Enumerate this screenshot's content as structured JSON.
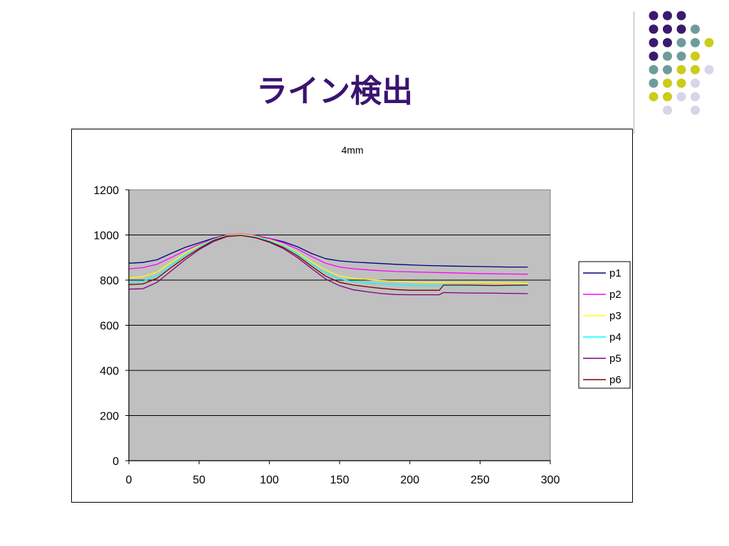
{
  "slide": {
    "title": "ライン検出"
  },
  "decoration": {
    "dot_colors": {
      "purple": "#3b1a6e",
      "teal": "#6f9b9b",
      "yellow": "#cccc1a",
      "lavender": "#d6d6ea"
    }
  },
  "chart_data": {
    "type": "line",
    "title": "4mm",
    "xlabel": "",
    "ylabel": "",
    "xlim": [
      0,
      300
    ],
    "ylim": [
      0,
      1200
    ],
    "xticks": [
      "0",
      "50",
      "100",
      "150",
      "200",
      "250",
      "300"
    ],
    "yticks": [
      "0",
      "200",
      "400",
      "600",
      "800",
      "1000",
      "1200"
    ],
    "grid": "horizontal",
    "plot_background": "#c0c0c0",
    "legend": {
      "placement": "right"
    },
    "series": [
      {
        "name": "p1",
        "color": "#000080",
        "points": [
          [
            0,
            875
          ],
          [
            10,
            878
          ],
          [
            20,
            890
          ],
          [
            30,
            918
          ],
          [
            40,
            945
          ],
          [
            50,
            965
          ],
          [
            60,
            985
          ],
          [
            70,
            1000
          ],
          [
            80,
            1003
          ],
          [
            90,
            995
          ],
          [
            100,
            985
          ],
          [
            110,
            970
          ],
          [
            120,
            948
          ],
          [
            130,
            918
          ],
          [
            140,
            895
          ],
          [
            150,
            885
          ],
          [
            160,
            880
          ],
          [
            175,
            875
          ],
          [
            190,
            870
          ],
          [
            210,
            865
          ],
          [
            230,
            862
          ],
          [
            250,
            860
          ],
          [
            270,
            858
          ],
          [
            284,
            858
          ]
        ]
      },
      {
        "name": "p2",
        "color": "#ff00ff",
        "points": [
          [
            0,
            850
          ],
          [
            10,
            855
          ],
          [
            20,
            870
          ],
          [
            30,
            900
          ],
          [
            40,
            930
          ],
          [
            50,
            958
          ],
          [
            60,
            982
          ],
          [
            70,
            1000
          ],
          [
            80,
            1005
          ],
          [
            90,
            998
          ],
          [
            100,
            985
          ],
          [
            110,
            965
          ],
          [
            120,
            938
          ],
          [
            130,
            905
          ],
          [
            140,
            875
          ],
          [
            150,
            858
          ],
          [
            160,
            850
          ],
          [
            175,
            843
          ],
          [
            190,
            838
          ],
          [
            210,
            835
          ],
          [
            230,
            832
          ],
          [
            250,
            829
          ],
          [
            270,
            827
          ],
          [
            284,
            826
          ]
        ]
      },
      {
        "name": "p3",
        "color": "#ffff00",
        "points": [
          [
            0,
            810
          ],
          [
            10,
            815
          ],
          [
            20,
            835
          ],
          [
            30,
            878
          ],
          [
            40,
            918
          ],
          [
            50,
            952
          ],
          [
            60,
            980
          ],
          [
            70,
            998
          ],
          [
            80,
            1003
          ],
          [
            90,
            995
          ],
          [
            100,
            978
          ],
          [
            110,
            955
          ],
          [
            120,
            922
          ],
          [
            130,
            880
          ],
          [
            140,
            845
          ],
          [
            150,
            818
          ],
          [
            160,
            808
          ],
          [
            175,
            800
          ],
          [
            190,
            795
          ],
          [
            210,
            790
          ],
          [
            230,
            790
          ],
          [
            250,
            790
          ],
          [
            270,
            788
          ],
          [
            284,
            785
          ]
        ]
      },
      {
        "name": "p4",
        "color": "#00ffff",
        "points": [
          [
            0,
            790
          ],
          [
            10,
            795
          ],
          [
            20,
            818
          ],
          [
            30,
            865
          ],
          [
            40,
            910
          ],
          [
            50,
            948
          ],
          [
            60,
            978
          ],
          [
            70,
            996
          ],
          [
            80,
            1000
          ],
          [
            90,
            992
          ],
          [
            100,
            975
          ],
          [
            110,
            952
          ],
          [
            120,
            918
          ],
          [
            130,
            872
          ],
          [
            140,
            832
          ],
          [
            150,
            805
          ],
          [
            160,
            793
          ],
          [
            175,
            785
          ],
          [
            190,
            780
          ],
          [
            210,
            775
          ],
          [
            230,
            775
          ],
          [
            250,
            775
          ],
          [
            270,
            775
          ],
          [
            284,
            775
          ]
        ]
      },
      {
        "name": "p5",
        "color": "#800080",
        "points": [
          [
            0,
            760
          ],
          [
            10,
            762
          ],
          [
            20,
            790
          ],
          [
            30,
            840
          ],
          [
            40,
            890
          ],
          [
            50,
            935
          ],
          [
            60,
            970
          ],
          [
            70,
            993
          ],
          [
            80,
            998
          ],
          [
            90,
            988
          ],
          [
            100,
            968
          ],
          [
            110,
            940
          ],
          [
            120,
            900
          ],
          [
            130,
            852
          ],
          [
            140,
            805
          ],
          [
            150,
            775
          ],
          [
            160,
            757
          ],
          [
            170,
            748
          ],
          [
            180,
            740
          ],
          [
            190,
            736
          ],
          [
            200,
            735
          ],
          [
            210,
            735
          ],
          [
            221,
            735
          ],
          [
            224,
            745
          ],
          [
            240,
            743
          ],
          [
            260,
            742
          ],
          [
            284,
            740
          ]
        ]
      },
      {
        "name": "p6",
        "color": "#800000",
        "points": [
          [
            0,
            780
          ],
          [
            10,
            783
          ],
          [
            20,
            808
          ],
          [
            30,
            855
          ],
          [
            40,
            900
          ],
          [
            50,
            940
          ],
          [
            60,
            975
          ],
          [
            70,
            995
          ],
          [
            80,
            998
          ],
          [
            90,
            988
          ],
          [
            100,
            970
          ],
          [
            110,
            945
          ],
          [
            120,
            908
          ],
          [
            130,
            862
          ],
          [
            140,
            818
          ],
          [
            150,
            790
          ],
          [
            160,
            778
          ],
          [
            170,
            770
          ],
          [
            180,
            763
          ],
          [
            190,
            758
          ],
          [
            200,
            755
          ],
          [
            210,
            755
          ],
          [
            221,
            755
          ],
          [
            224,
            778
          ],
          [
            240,
            778
          ],
          [
            260,
            776
          ],
          [
            284,
            778
          ]
        ]
      }
    ]
  }
}
